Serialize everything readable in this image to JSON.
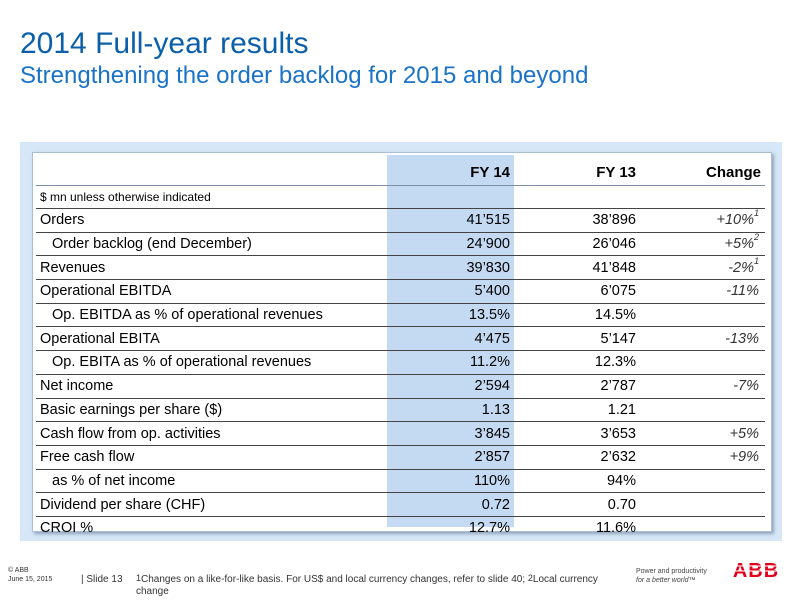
{
  "header": {
    "title": "2014 Full-year results",
    "subtitle": "Strengthening the order backlog for 2015 and beyond"
  },
  "table": {
    "columns": [
      "FY 14",
      "FY 13",
      "Change"
    ],
    "unit_note": "$ mn unless otherwise indicated",
    "rows": [
      {
        "label": "Orders",
        "fy14": "41’515",
        "fy13": "38’896",
        "change": "+10%",
        "note": "1"
      },
      {
        "label": "Order backlog (end December)",
        "fy14": "24’900",
        "fy13": "26’046",
        "change": "+5%",
        "note": "2"
      },
      {
        "label": "Revenues",
        "fy14": "39’830",
        "fy13": "41’848",
        "change": "-2%",
        "note": "1"
      },
      {
        "label": "Operational EBITDA",
        "fy14": "5’400",
        "fy13": "6’075",
        "change": "-11%",
        "note": ""
      },
      {
        "label": "Op. EBITDA as % of operational revenues",
        "fy14": "13.5%",
        "fy13": "14.5%",
        "change": "",
        "note": ""
      },
      {
        "label": "Operational EBITA",
        "fy14": "4’475",
        "fy13": "5’147",
        "change": "-13%",
        "note": ""
      },
      {
        "label": "Op. EBITA as % of operational revenues",
        "fy14": "11.2%",
        "fy13": "12.3%",
        "change": "",
        "note": ""
      },
      {
        "label": "Net income",
        "fy14": "2’594",
        "fy13": "2’787",
        "change": "-7%",
        "note": ""
      },
      {
        "label": "Basic earnings per share ($)",
        "fy14": "1.13",
        "fy13": "1.21",
        "change": "",
        "note": ""
      },
      {
        "label": "Cash flow from op. activities",
        "fy14": "3’845",
        "fy13": "3’653",
        "change": "+5%",
        "note": ""
      },
      {
        "label": "Free cash flow",
        "fy14": "2’857",
        "fy13": "2’632",
        "change": "+9%",
        "note": ""
      },
      {
        "label": "as % of net income",
        "fy14": "110%",
        "fy13": "94%",
        "change": "",
        "note": ""
      },
      {
        "label": "Dividend per share (CHF)",
        "fy14": "0.72",
        "fy13": "0.70",
        "change": "",
        "note": ""
      },
      {
        "label": "CROI %",
        "fy14": "12.7%",
        "fy13": "11.6%",
        "change": "",
        "note": ""
      }
    ]
  },
  "footer": {
    "copyright": "© ABB",
    "date": "June 15, 2015",
    "slide": "| Slide 13",
    "footnote_prefix": "1",
    "footnote_text_1": "Changes on a like-for-like basis. For US$ and local currency changes, refer to slide 40; ",
    "footnote_prefix_2": "2",
    "footnote_text_2": "Local currency change",
    "tagline_1": "Power and productivity",
    "tagline_2": "for a better world™",
    "logo_text": "ABB"
  },
  "colors": {
    "title": "#0b5fa8",
    "subtitle": "#1a73c7",
    "panel_bg": "#d6e7f7",
    "highlight_col": "#c4daf3",
    "logo_red": "#e2001a"
  }
}
